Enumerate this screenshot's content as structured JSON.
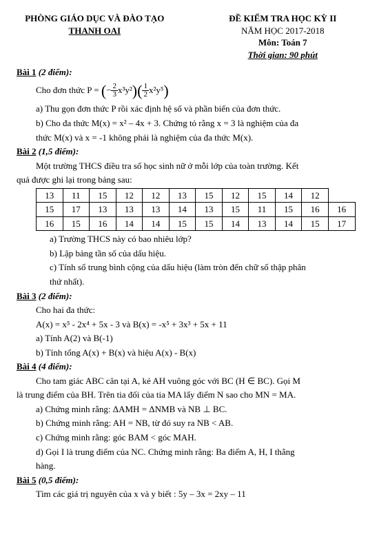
{
  "header": {
    "dept": "PHÒNG GIÁO DỤC VÀ ĐÀO TẠO",
    "district": "THANH OAI",
    "title": "ĐỀ KIỂM TRA HỌC KỲ II",
    "year": "NĂM HỌC 2017-2018",
    "subject": "Môn: Toán 7",
    "time": "Thời gian: 90 phút"
  },
  "b1": {
    "title": "Bài 1",
    "pts": "(2 điểm):",
    "intro": "Cho đơn thức  P =",
    "frac1n": "2",
    "frac1d": "3",
    "term1": "x³y²",
    "frac2n": "1",
    "frac2d": "2",
    "term2": "x²y⁵",
    "a": "a) Thu gọn đơn thức P rồi xác định hệ số và phần biến của đơn thức.",
    "b1": "b) Cho đa thức M(x) = x² – 4x + 3. Chứng tỏ rằng x = 3 là nghiệm của đa",
    "b2": "thức M(x) và x = -1 không phải là nghiệm của đa thức M(x)."
  },
  "b2": {
    "title": "Bài 2",
    "pts": "(1,5 điểm):",
    "intro1": "Một trường THCS điều tra số học sinh nữ ở mỗi lớp của toàn trường. Kết",
    "intro2": "quả được ghi lại trong bảng sau:",
    "rows": [
      [
        "13",
        "11",
        "15",
        "12",
        "12",
        "13",
        "15",
        "12",
        "15",
        "14",
        "12"
      ],
      [
        "15",
        "17",
        "13",
        "13",
        "13",
        "14",
        "13",
        "15",
        "11",
        "15",
        "16",
        "16"
      ],
      [
        "16",
        "15",
        "16",
        "14",
        "14",
        "15",
        "15",
        "14",
        "13",
        "14",
        "15",
        "17"
      ]
    ],
    "qa": "a) Trường THCS này có bao nhiêu lớp?",
    "qb": "b) Lập bảng tần số của dấu hiệu.",
    "qc1": "c) Tính số trung bình cộng của dấu hiệu (làm tròn đến chữ số thập phân",
    "qc2": "thứ nhất)."
  },
  "b3": {
    "title": "Bài 3",
    "pts": "(2 điểm):",
    "l1": "Cho hai đa thức:",
    "l2": "A(x) = x⁵ - 2x⁴ + 5x - 3 và B(x) = -x⁵ + 3x³ + 5x + 11",
    "qa": "a) Tính A(2) và B(-1)",
    "qb": "b) Tính tổng A(x) + B(x) và hiệu A(x) - B(x)"
  },
  "b4": {
    "title": "Bài 4",
    "pts": "(4 điểm):",
    "l1": "Cho tam giác ABC cân tại A, kẻ AH vuông góc với BC (H ∈ BC). Gọi M",
    "l2": "là trung điểm của BH. Trên tia đối của tia MA lấy điểm N sao cho MN = MA.",
    "qa": "a) Chứng minh rằng: ΔAMH = ΔNMB và NB ⊥ BC.",
    "qb": "b) Chứng minh rằng: AH = NB, từ đó suy ra NB < AB.",
    "qc": "c) Chứng minh rằng: góc BAM < góc MAH.",
    "qd1": "d) Gọi I là trung điểm của NC. Chứng minh rằng: Ba điểm A, H, I thẳng",
    "qd2": "hàng."
  },
  "b5": {
    "title": "Bài 5",
    "pts": "(0,5 điểm):",
    "q": "Tìm các giá trị nguyên của x và y biết : 5y – 3x = 2xy – 11"
  }
}
